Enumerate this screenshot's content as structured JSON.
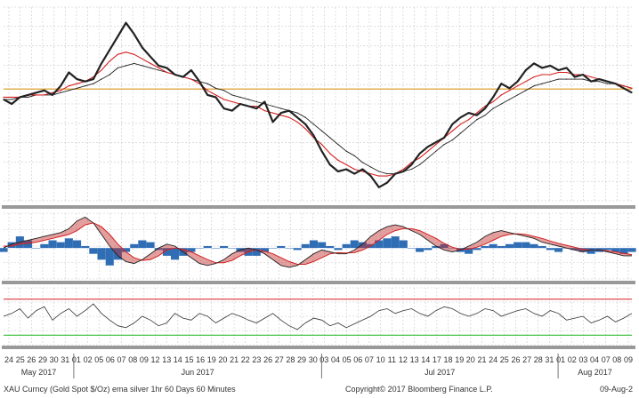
{
  "colors": {
    "price": "#222222",
    "ema_short": "#d62020",
    "ema_long": "#222222",
    "reference_line": "#e0b050",
    "macd_hist": "#2f6db5",
    "macd_cloud": "#c02828",
    "macd_signal": "#d62020",
    "macd_line": "#222222",
    "rsi_line": "#333333",
    "rsi_upper": "#d62020",
    "rsi_lower": "#33bb33",
    "separator": "#999999",
    "grid": "#c8c8c8"
  },
  "footer": {
    "security": "XAU Curncy (Gold Spot   $/Oz) ema silver 1hr 60 Days 60 Minutes",
    "copyright": "Copyright© 2017 Bloomberg Finance L.P.",
    "date": "09-Aug-2"
  },
  "chart_data": [
    {
      "panel": "price",
      "type": "line",
      "title": "",
      "grid": true,
      "x_days": [
        0,
        1,
        2,
        3,
        4,
        5,
        6,
        7,
        8,
        9,
        10,
        11,
        12,
        13,
        14,
        15,
        16,
        17,
        18,
        19,
        20,
        21,
        22,
        23,
        24,
        25,
        26,
        27,
        28,
        29,
        30,
        31,
        32,
        33,
        34,
        35,
        36,
        37,
        38,
        39,
        40,
        41,
        42,
        43,
        44,
        45,
        46,
        47,
        48,
        49,
        50,
        51,
        52,
        53,
        54,
        55,
        56,
        57,
        58,
        59,
        60,
        61,
        62,
        63,
        64,
        65,
        66,
        67,
        68,
        69,
        70,
        71,
        72,
        73,
        74,
        75,
        76,
        77
      ],
      "series": [
        {
          "key": "price",
          "values": [
            0.59,
            0.57,
            0.6,
            0.61,
            0.62,
            0.63,
            0.61,
            0.65,
            0.71,
            0.68,
            0.67,
            0.68,
            0.75,
            0.81,
            0.87,
            0.93,
            0.88,
            0.82,
            0.78,
            0.74,
            0.73,
            0.7,
            0.69,
            0.72,
            0.67,
            0.61,
            0.6,
            0.55,
            0.54,
            0.57,
            0.56,
            0.55,
            0.58,
            0.49,
            0.53,
            0.54,
            0.51,
            0.48,
            0.43,
            0.36,
            0.3,
            0.27,
            0.28,
            0.26,
            0.28,
            0.25,
            0.2,
            0.22,
            0.26,
            0.27,
            0.3,
            0.35,
            0.38,
            0.4,
            0.42,
            0.48,
            0.51,
            0.53,
            0.52,
            0.55,
            0.6,
            0.66,
            0.64,
            0.67,
            0.72,
            0.75,
            0.73,
            0.74,
            0.72,
            0.73,
            0.69,
            0.7,
            0.67,
            0.68,
            0.67,
            0.66,
            0.64,
            0.62
          ]
        },
        {
          "key": "ema_short",
          "values": [
            0.6,
            0.6,
            0.6,
            0.61,
            0.61,
            0.61,
            0.62,
            0.63,
            0.65,
            0.66,
            0.67,
            0.69,
            0.72,
            0.76,
            0.79,
            0.8,
            0.79,
            0.77,
            0.75,
            0.73,
            0.71,
            0.7,
            0.69,
            0.68,
            0.66,
            0.63,
            0.61,
            0.59,
            0.58,
            0.57,
            0.56,
            0.56,
            0.54,
            0.53,
            0.52,
            0.51,
            0.49,
            0.46,
            0.42,
            0.39,
            0.35,
            0.32,
            0.3,
            0.28,
            0.27,
            0.26,
            0.25,
            0.25,
            0.26,
            0.28,
            0.31,
            0.33,
            0.36,
            0.39,
            0.42,
            0.45,
            0.48,
            0.5,
            0.53,
            0.56,
            0.58,
            0.61,
            0.63,
            0.65,
            0.67,
            0.69,
            0.7,
            0.7,
            0.71,
            0.71,
            0.7,
            0.7,
            0.69,
            0.68,
            0.67,
            0.66,
            0.65,
            0.64
          ]
        },
        {
          "key": "ema_long",
          "values": [
            0.59,
            0.59,
            0.6,
            0.6,
            0.61,
            0.61,
            0.61,
            0.62,
            0.63,
            0.64,
            0.65,
            0.66,
            0.68,
            0.7,
            0.73,
            0.74,
            0.75,
            0.74,
            0.73,
            0.72,
            0.71,
            0.7,
            0.69,
            0.68,
            0.67,
            0.66,
            0.64,
            0.63,
            0.61,
            0.6,
            0.59,
            0.58,
            0.57,
            0.56,
            0.55,
            0.54,
            0.53,
            0.51,
            0.48,
            0.45,
            0.42,
            0.39,
            0.36,
            0.34,
            0.31,
            0.29,
            0.27,
            0.26,
            0.26,
            0.27,
            0.28,
            0.3,
            0.33,
            0.36,
            0.39,
            0.41,
            0.44,
            0.47,
            0.5,
            0.52,
            0.55,
            0.57,
            0.59,
            0.61,
            0.63,
            0.65,
            0.66,
            0.67,
            0.68,
            0.68,
            0.68,
            0.68,
            0.67,
            0.67,
            0.66,
            0.66,
            0.65,
            0.64
          ]
        }
      ],
      "reference_level": 0.636,
      "ylim": [
        0.14,
        1.0
      ]
    },
    {
      "panel": "macd",
      "type": "area",
      "title": "",
      "grid": true,
      "x_days": [
        0,
        1,
        2,
        3,
        4,
        5,
        6,
        7,
        8,
        9,
        10,
        11,
        12,
        13,
        14,
        15,
        16,
        17,
        18,
        19,
        20,
        21,
        22,
        23,
        24,
        25,
        26,
        27,
        28,
        29,
        30,
        31,
        32,
        33,
        34,
        35,
        36,
        37,
        38,
        39,
        40,
        41,
        42,
        43,
        44,
        45,
        46,
        47,
        48,
        49,
        50,
        51,
        52,
        53,
        54,
        55,
        56,
        57,
        58,
        59,
        60,
        61,
        62,
        63,
        64,
        65,
        66,
        67,
        68,
        69,
        70,
        71,
        72,
        73,
        74,
        75,
        76,
        77
      ],
      "series": [
        {
          "key": "histogram",
          "values": [
            -0.1,
            0.15,
            0.3,
            0.2,
            0.0,
            0.1,
            0.2,
            0.15,
            0.25,
            0.2,
            0.05,
            -0.15,
            -0.3,
            -0.45,
            -0.3,
            -0.1,
            0.1,
            0.2,
            0.15,
            -0.05,
            -0.2,
            -0.3,
            -0.2,
            -0.1,
            0.0,
            0.05,
            0.0,
            0.05,
            0.0,
            -0.1,
            -0.2,
            -0.2,
            -0.1,
            0.0,
            0.05,
            0.0,
            -0.05,
            0.1,
            0.2,
            0.15,
            0.05,
            -0.05,
            0.1,
            0.2,
            0.15,
            0.1,
            0.2,
            0.25,
            0.3,
            0.2,
            0.0,
            -0.1,
            -0.05,
            0.05,
            0.1,
            0.0,
            -0.1,
            -0.15,
            -0.05,
            0.05,
            0.1,
            0.05,
            0.1,
            0.15,
            0.15,
            0.1,
            0.05,
            -0.05,
            -0.1,
            0.0,
            -0.05,
            -0.1,
            -0.15,
            -0.1,
            -0.05,
            -0.1,
            -0.15,
            -0.1
          ]
        },
        {
          "key": "macd",
          "values": [
            0.0,
            0.1,
            0.15,
            0.2,
            0.25,
            0.3,
            0.35,
            0.4,
            0.5,
            0.7,
            0.8,
            0.65,
            0.35,
            0.05,
            -0.2,
            -0.35,
            -0.4,
            -0.3,
            -0.15,
            0.0,
            0.1,
            0.05,
            -0.1,
            -0.25,
            -0.4,
            -0.45,
            -0.4,
            -0.3,
            -0.15,
            -0.05,
            0.0,
            -0.05,
            -0.15,
            -0.3,
            -0.45,
            -0.5,
            -0.45,
            -0.3,
            -0.15,
            -0.05,
            -0.1,
            -0.15,
            -0.15,
            -0.05,
            0.1,
            0.3,
            0.45,
            0.55,
            0.6,
            0.55,
            0.45,
            0.35,
            0.2,
            0.05,
            -0.05,
            -0.1,
            -0.05,
            0.05,
            0.15,
            0.3,
            0.4,
            0.45,
            0.4,
            0.35,
            0.3,
            0.25,
            0.15,
            0.1,
            0.05,
            0.0,
            -0.05,
            -0.1,
            -0.05,
            -0.05,
            -0.1,
            -0.15,
            -0.2,
            -0.2
          ]
        },
        {
          "key": "signal",
          "values": [
            0.05,
            0.05,
            0.1,
            0.12,
            0.15,
            0.2,
            0.25,
            0.3,
            0.35,
            0.45,
            0.6,
            0.65,
            0.55,
            0.35,
            0.1,
            -0.1,
            -0.25,
            -0.32,
            -0.3,
            -0.2,
            -0.05,
            0.0,
            -0.03,
            -0.1,
            -0.2,
            -0.3,
            -0.38,
            -0.38,
            -0.32,
            -0.2,
            -0.1,
            -0.05,
            -0.08,
            -0.15,
            -0.25,
            -0.35,
            -0.42,
            -0.42,
            -0.35,
            -0.25,
            -0.15,
            -0.12,
            -0.13,
            -0.12,
            -0.05,
            0.05,
            0.2,
            0.35,
            0.45,
            0.5,
            0.5,
            0.45,
            0.35,
            0.25,
            0.12,
            0.02,
            -0.03,
            -0.03,
            0.02,
            0.1,
            0.2,
            0.3,
            0.35,
            0.37,
            0.35,
            0.3,
            0.25,
            0.18,
            0.12,
            0.07,
            0.02,
            -0.03,
            -0.05,
            -0.05,
            -0.07,
            -0.1,
            -0.14,
            -0.17
          ]
        }
      ],
      "ylim": [
        -0.8,
        0.9
      ]
    },
    {
      "panel": "rsi",
      "type": "line",
      "title": "",
      "grid": true,
      "x_days": [
        0,
        1,
        2,
        3,
        4,
        5,
        6,
        7,
        8,
        9,
        10,
        11,
        12,
        13,
        14,
        15,
        16,
        17,
        18,
        19,
        20,
        21,
        22,
        23,
        24,
        25,
        26,
        27,
        28,
        29,
        30,
        31,
        32,
        33,
        34,
        35,
        36,
        37,
        38,
        39,
        40,
        41,
        42,
        43,
        44,
        45,
        46,
        47,
        48,
        49,
        50,
        51,
        52,
        53,
        54,
        55,
        56,
        57,
        58,
        59,
        60,
        61,
        62,
        63,
        64,
        65,
        66,
        67,
        68,
        69,
        70,
        71,
        72,
        73,
        74,
        75,
        76,
        77
      ],
      "series": [
        {
          "key": "rsi",
          "values": [
            52,
            55,
            60,
            50,
            58,
            62,
            48,
            55,
            60,
            52,
            58,
            65,
            55,
            48,
            42,
            40,
            45,
            52,
            48,
            42,
            45,
            55,
            50,
            48,
            55,
            52,
            45,
            50,
            55,
            52,
            48,
            45,
            50,
            55,
            48,
            42,
            38,
            45,
            50,
            48,
            42,
            45,
            40,
            44,
            48,
            52,
            58,
            60,
            55,
            58,
            60,
            55,
            52,
            58,
            62,
            60,
            55,
            52,
            55,
            60,
            58,
            52,
            55,
            58,
            60,
            55,
            52,
            58,
            55,
            48,
            50,
            52,
            45,
            48,
            52,
            46,
            50,
            55
          ]
        }
      ],
      "upper_level": 70,
      "lower_level": 32,
      "ylim": [
        22,
        82
      ]
    }
  ],
  "axis": {
    "day_ticks": [
      "24",
      "25",
      "26",
      "29",
      "30",
      "31",
      "01",
      "02",
      "05",
      "06",
      "07",
      "08",
      "09",
      "12",
      "13",
      "14",
      "15",
      "16",
      "19",
      "20",
      "21",
      "22",
      "23",
      "26",
      "27",
      "28",
      "29",
      "30",
      "03",
      "04",
      "05",
      "06",
      "07",
      "10",
      "11",
      "12",
      "13",
      "14",
      "17",
      "18",
      "19",
      "20",
      "21",
      "24",
      "25",
      "26",
      "27",
      "28",
      "31",
      "01",
      "02",
      "03",
      "04",
      "07",
      "08",
      "09"
    ],
    "months": [
      {
        "label": "May 2017",
        "start_tick": 0
      },
      {
        "label": "Jun 2017",
        "start_tick": 6
      },
      {
        "label": "Jul 2017",
        "start_tick": 28
      },
      {
        "label": "Aug 2017",
        "start_tick": 49
      }
    ]
  }
}
